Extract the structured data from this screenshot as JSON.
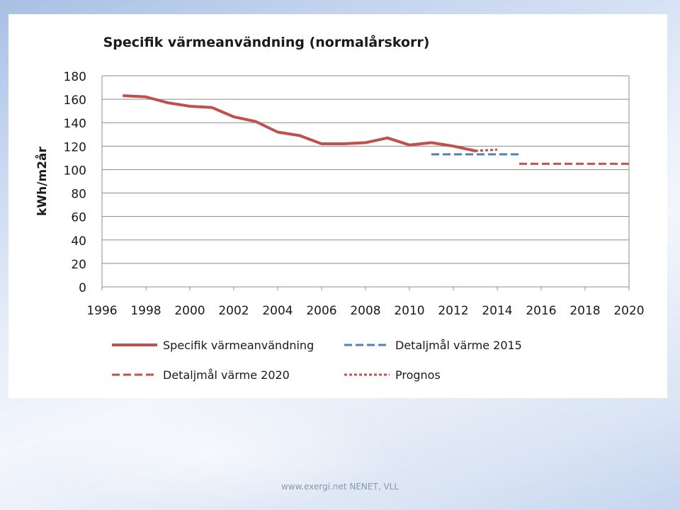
{
  "slide": {
    "footer": "www.exergi.net NENET, VLL"
  },
  "chart_data": {
    "type": "line",
    "title": "Specifik värmeanvändning (normalårskorr)",
    "xlabel": "",
    "ylabel": "kWh/m2år",
    "xlim": [
      1996,
      2020
    ],
    "ylim": [
      0,
      180
    ],
    "xticks": [
      1996,
      1998,
      2000,
      2002,
      2004,
      2006,
      2008,
      2010,
      2012,
      2014,
      2016,
      2018,
      2020
    ],
    "yticks": [
      0,
      20,
      40,
      60,
      80,
      100,
      120,
      140,
      160,
      180
    ],
    "grid": "horizontal",
    "legend_position": "bottom",
    "series": [
      {
        "name": "Specifik värmeanvändning",
        "color": "#c0504d",
        "style": "solid",
        "x": [
          1997,
          1998,
          1999,
          2000,
          2001,
          2002,
          2003,
          2004,
          2005,
          2006,
          2007,
          2008,
          2009,
          2010,
          2011,
          2012,
          2013
        ],
        "y": [
          163,
          162,
          157,
          154,
          153,
          145,
          141,
          132,
          129,
          122,
          122,
          123,
          127,
          121,
          123,
          120,
          116
        ]
      },
      {
        "name": "Detaljmål värme 2015",
        "color": "#4f81bd",
        "style": "dashed",
        "x": [
          2011,
          2015
        ],
        "y": [
          113,
          113
        ]
      },
      {
        "name": "Detaljmål värme 2020",
        "color": "#c0504d",
        "style": "dashed",
        "x": [
          2015,
          2020
        ],
        "y": [
          105,
          105
        ]
      },
      {
        "name": "Prognos",
        "color": "#c0504d",
        "style": "dotted",
        "x": [
          2013,
          2014
        ],
        "y": [
          116,
          117
        ]
      }
    ]
  }
}
